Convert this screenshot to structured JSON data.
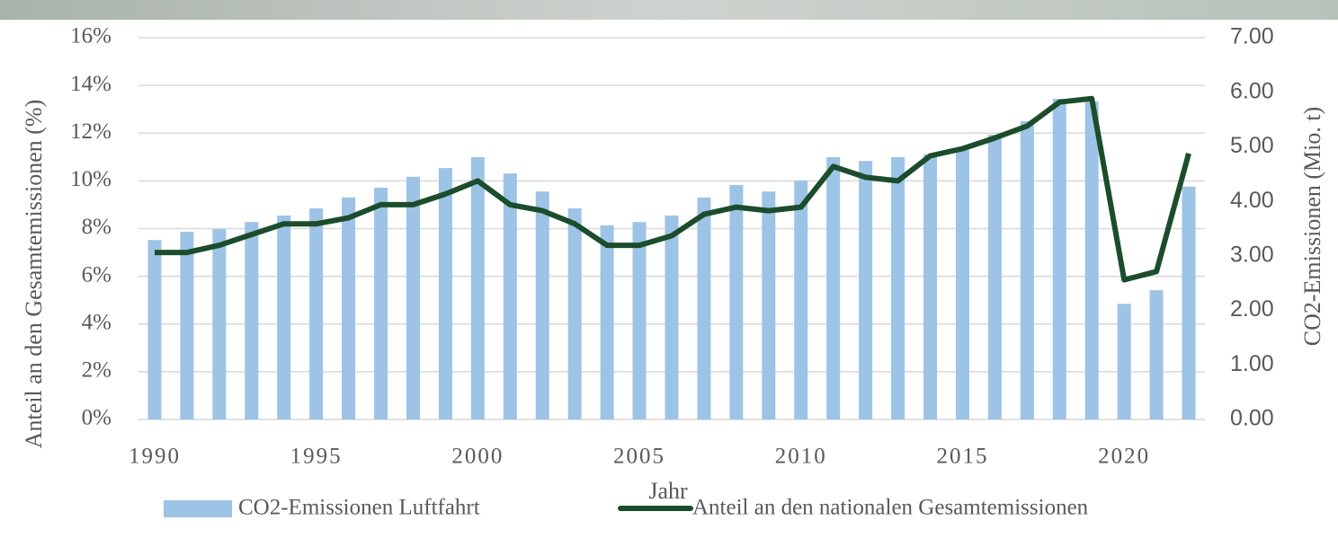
{
  "chart_data": {
    "type": "bar-line",
    "categories": [
      "1990",
      null,
      null,
      null,
      null,
      "1995",
      null,
      null,
      null,
      null,
      "2000",
      null,
      null,
      null,
      null,
      "2005",
      null,
      null,
      null,
      null,
      "2010",
      null,
      null,
      null,
      null,
      "2015",
      null,
      null,
      null,
      null,
      "2020",
      null,
      null
    ],
    "x_label": "Jahr",
    "y_label": "Anteil an den Gesamtemissionen (%)",
    "y2_label": "CO2-Emissionen (Mio. t)",
    "ylim": [
      0,
      16
    ],
    "yticks": [
      {
        "value": 0,
        "label": "0%"
      },
      {
        "value": 2,
        "label": "2%"
      },
      {
        "value": 4,
        "label": "4%"
      },
      {
        "value": 6,
        "label": "6%"
      },
      {
        "value": 8,
        "label": "8%"
      },
      {
        "value": 10,
        "label": "10%"
      },
      {
        "value": 12,
        "label": "12%"
      },
      {
        "value": 14,
        "label": "14%"
      },
      {
        "value": 16,
        "label": "16%"
      }
    ],
    "y2lim": [
      0,
      7
    ],
    "y2ticks": [
      {
        "value": 0,
        "label": "0.00"
      },
      {
        "value": 1,
        "label": "1.00"
      },
      {
        "value": 2,
        "label": "2.00"
      },
      {
        "value": 3,
        "label": "3.00"
      },
      {
        "value": 4,
        "label": "4.00"
      },
      {
        "value": 5,
        "label": "5.00"
      },
      {
        "value": 6,
        "label": "6.00"
      },
      {
        "value": 7,
        "label": "7.00"
      }
    ],
    "grid": true,
    "legend": "bottom",
    "series": [
      {
        "name": "CO2-Emissionen Luftfahrt",
        "type": "bar",
        "axis": "y2",
        "color": "#9dc3e6",
        "values": [
          3.29,
          3.44,
          3.49,
          3.62,
          3.74,
          3.87,
          4.07,
          4.25,
          4.45,
          4.61,
          4.81,
          4.51,
          4.18,
          3.87,
          3.56,
          3.62,
          3.74,
          4.07,
          4.3,
          4.18,
          4.38,
          4.81,
          4.74,
          4.81,
          4.86,
          4.94,
          5.22,
          5.47,
          5.88,
          5.83,
          2.12,
          2.37,
          4.27
        ]
      },
      {
        "name": "Anteil an den nationalen Gesamtemissionen",
        "type": "line",
        "axis": "y",
        "color": "#1b4d2c",
        "values": [
          7.0,
          7.0,
          7.3,
          7.75,
          8.2,
          8.2,
          8.45,
          9.0,
          9.0,
          9.45,
          10.0,
          9.0,
          8.75,
          8.2,
          7.3,
          7.3,
          7.7,
          8.6,
          8.9,
          8.75,
          8.9,
          10.6,
          10.15,
          10.0,
          11.05,
          11.35,
          11.8,
          12.3,
          13.3,
          13.45,
          5.85,
          6.2,
          11.15
        ]
      }
    ]
  }
}
